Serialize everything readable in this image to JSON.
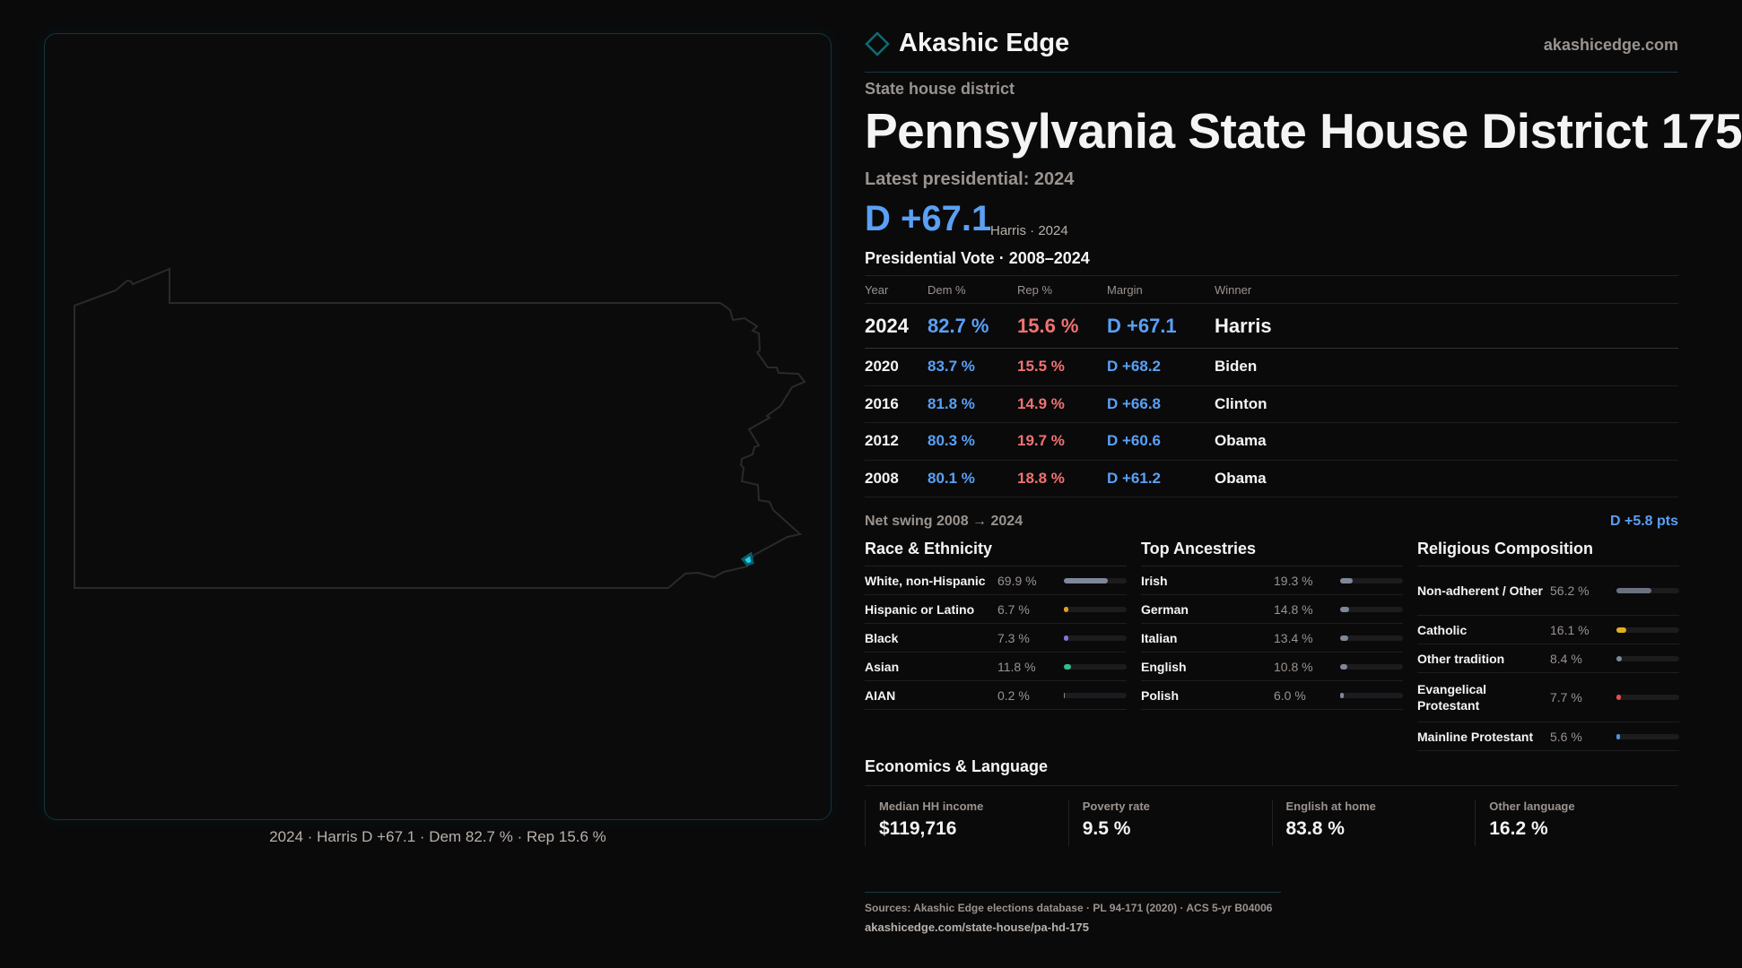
{
  "brand": {
    "name": "Akashic Edge",
    "site": "akashicedge.com",
    "accent": "#0f6b73"
  },
  "map": {
    "caption": "2024 · Harris D +67.1 · Dem 82.7 % · Rep 15.6 %",
    "highlight_color": "#19d3f0"
  },
  "header": {
    "kicker": "State house district",
    "title": "Pennsylvania State House District 175",
    "latest": "Latest presidential: 2024",
    "margin": "D +67.1",
    "margin_sub": "Harris · 2024"
  },
  "votes": {
    "title": "Presidential Vote · 2008–2024",
    "columns": [
      "Year",
      "Dem %",
      "Rep %",
      "Margin",
      "Winner"
    ],
    "rows": [
      [
        "2024",
        "82.7 %",
        "15.6 %",
        "D +67.1",
        "Harris"
      ],
      [
        "2020",
        "83.7 %",
        "15.5 %",
        "D +68.2",
        "Biden"
      ],
      [
        "2016",
        "81.8 %",
        "14.9 %",
        "D +66.8",
        "Clinton"
      ],
      [
        "2012",
        "80.3 %",
        "19.7 %",
        "D +60.6",
        "Obama"
      ],
      [
        "2008",
        "80.1 %",
        "18.8 %",
        "D +61.2",
        "Obama"
      ]
    ]
  },
  "swing": {
    "label": "Net swing 2008 → 2024",
    "value": "D +5.8 pts"
  },
  "demographics": [
    {
      "title": "Race & Ethnicity",
      "items": [
        {
          "label": "White, non-Hispanic",
          "value": "69.9 %",
          "pct": 69.9,
          "color": "#7f8898"
        },
        {
          "label": "Hispanic or Latino",
          "value": "6.7 %",
          "pct": 6.7,
          "color": "#e0a020"
        },
        {
          "label": "Black",
          "value": "7.3 %",
          "pct": 7.3,
          "color": "#8b6fe0"
        },
        {
          "label": "Asian",
          "value": "11.8 %",
          "pct": 11.8,
          "color": "#2fbf8a"
        },
        {
          "label": "AIAN",
          "value": "0.2 %",
          "pct": 0.2,
          "color": "#7f8898"
        }
      ]
    },
    {
      "title": "Top Ancestries",
      "items": [
        {
          "label": "Irish",
          "value": "19.3 %",
          "pct": 19.3,
          "color": "#7f8898"
        },
        {
          "label": "German",
          "value": "14.8 %",
          "pct": 14.8,
          "color": "#7f8898"
        },
        {
          "label": "Italian",
          "value": "13.4 %",
          "pct": 13.4,
          "color": "#7f8898"
        },
        {
          "label": "English",
          "value": "10.8 %",
          "pct": 10.8,
          "color": "#7f8898"
        },
        {
          "label": "Polish",
          "value": "6.0 %",
          "pct": 6.0,
          "color": "#7f8898"
        }
      ]
    },
    {
      "title": "Religious Composition",
      "items": [
        {
          "label": "Non-adherent / Other",
          "value": "56.2 %",
          "pct": 56.2,
          "color": "#6b7180"
        },
        {
          "label": "Catholic",
          "value": "16.1 %",
          "pct": 16.1,
          "color": "#e0b020"
        },
        {
          "label": "Other tradition",
          "value": "8.4 %",
          "pct": 8.4,
          "color": "#7f8898"
        },
        {
          "label": "Evangelical Protestant",
          "value": "7.7 %",
          "pct": 7.7,
          "color": "#e05050"
        },
        {
          "label": "Mainline Protestant",
          "value": "5.6 %",
          "pct": 5.6,
          "color": "#4a90e0"
        }
      ]
    }
  ],
  "economics": {
    "title": "Economics & Language",
    "cards": [
      {
        "label": "Median HH income",
        "value": "$119,716"
      },
      {
        "label": "Poverty rate",
        "value": "9.5 %"
      },
      {
        "label": "English at home",
        "value": "83.8 %"
      },
      {
        "label": "Other language",
        "value": "16.2 %"
      }
    ]
  },
  "footer": {
    "sources": "Sources: Akashic Edge elections database · PL 94-171 (2020) · ACS 5-yr B04006",
    "url": "akashicedge.com/state-house/pa-hd-175"
  }
}
